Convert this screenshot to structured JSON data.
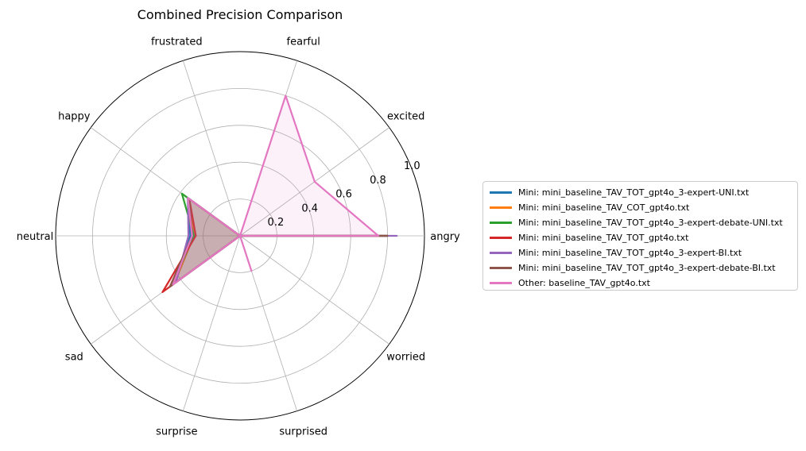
{
  "chart_data": {
    "type": "radar",
    "title": "Combined Precision Comparison",
    "categories": [
      "angry",
      "excited",
      "fearful",
      "frustrated",
      "happy",
      "neutral",
      "sad",
      "surprise",
      "surprised",
      "worried"
    ],
    "r_ticks": [
      "0.2",
      "0.4",
      "0.6",
      "0.8",
      "1.0"
    ],
    "r_tick_values": [
      0.2,
      0.4,
      0.6,
      0.8,
      1.0
    ],
    "rlim": [
      0,
      1.0
    ],
    "grid": true,
    "legend_position": "right",
    "series": [
      {
        "name": "Mini: mini_baseline_TAV_TOT_gpt4o_3-expert-UNI.txt",
        "color": "#1f77b4",
        "values": [
          0.8,
          0.0,
          0.0,
          0.0,
          0.35,
          0.27,
          0.45,
          0.0,
          0.0,
          0.0
        ]
      },
      {
        "name": "Mini: mini_baseline_TAV_COT_gpt4o.txt",
        "color": "#ff7f0e",
        "values": [
          0.8,
          0.0,
          0.0,
          0.0,
          0.34,
          0.25,
          0.44,
          0.0,
          0.0,
          0.0
        ]
      },
      {
        "name": "Mini: mini_baseline_TAV_TOT_gpt4o_3-expert-debate-UNI.txt",
        "color": "#2ca02c",
        "values": [
          0.8,
          0.0,
          0.0,
          0.0,
          0.39,
          0.25,
          0.46,
          0.0,
          0.0,
          0.0
        ]
      },
      {
        "name": "Mini: mini_baseline_TAV_TOT_gpt4o.txt",
        "color": "#d62728",
        "values": [
          0.8,
          0.0,
          0.0,
          0.0,
          0.34,
          0.24,
          0.52,
          0.0,
          0.0,
          0.0
        ]
      },
      {
        "name": "Mini: mini_baseline_TAV_TOT_gpt4o_3-expert-BI.txt",
        "color": "#9467bd",
        "values": [
          0.85,
          0.0,
          0.0,
          0.0,
          0.35,
          0.28,
          0.43,
          0.0,
          0.0,
          0.0
        ]
      },
      {
        "name": "Mini: mini_baseline_TAV_TOT_gpt4o_3-expert-debate-BI.txt",
        "color": "#8c564b",
        "values": [
          0.8,
          0.0,
          0.0,
          0.0,
          0.34,
          0.26,
          0.47,
          0.0,
          0.0,
          0.0
        ]
      },
      {
        "name": "Other: baseline_TAV_gpt4o.txt",
        "color": "#e377c2",
        "values": [
          0.75,
          0.5,
          0.8,
          0.0,
          0.35,
          0.26,
          0.45,
          0.0,
          0.2,
          0.0
        ]
      }
    ]
  }
}
